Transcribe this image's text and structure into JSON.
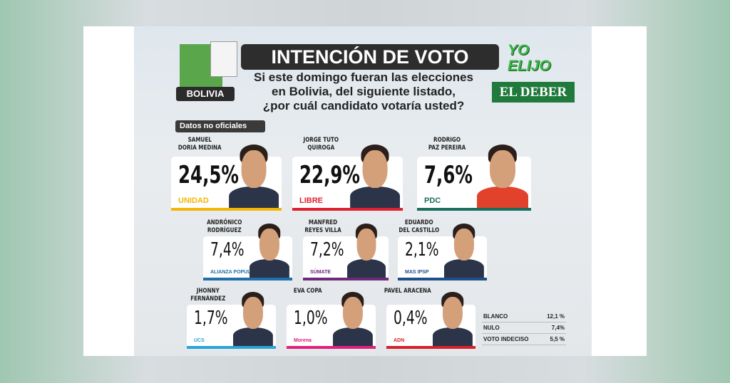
{
  "header": {
    "region": "BOLIVIA",
    "title": "INTENCIÓN DE VOTO",
    "question_lines": [
      "Si este domingo fueran las elecciones",
      "en Bolivia, del siguiente listado,",
      "¿por cuál candidato votaría usted?"
    ],
    "brand_top": [
      "YO",
      "ELIJO"
    ],
    "brand": "EL DEBER",
    "note": "Datos no oficiales"
  },
  "candidates": [
    {
      "name": [
        "SAMUEL",
        "DORIA MEDINA"
      ],
      "pct": "24,5%",
      "party": "UNIDAD",
      "color": "#f2b705"
    },
    {
      "name": [
        "JORGE TUTO",
        "QUIROGA"
      ],
      "pct": "22,9%",
      "party": "LIBRE",
      "color": "#e0202e"
    },
    {
      "name": [
        "RODRIGO",
        "PAZ PEREIRA"
      ],
      "pct": "7,6%",
      "party": "PDC",
      "color": "#1a6e5c"
    },
    {
      "name": [
        "ANDRÓNICO",
        "RODRÍGUEZ"
      ],
      "pct": "7,4%",
      "party": "ALIANZA POPULAR",
      "color": "#1f6fa8"
    },
    {
      "name": [
        "MANFRED",
        "REYES VILLA"
      ],
      "pct": "7,2%",
      "party": "SÚMATE",
      "color": "#6b2a7a"
    },
    {
      "name": [
        "EDUARDO",
        "DEL CASTILLO"
      ],
      "pct": "2,1%",
      "party": "MAS IPSP",
      "color": "#1f4f8a"
    },
    {
      "name": [
        "JHONNY",
        "FERNÁNDEZ"
      ],
      "pct": "1,7%",
      "party": "UCS",
      "color": "#2aa4d8"
    },
    {
      "name": [
        "EVA COPA",
        ""
      ],
      "pct": "1,0%",
      "party": "Morena",
      "color": "#e0207a"
    },
    {
      "name": [
        "PAVEL ARACENA",
        ""
      ],
      "pct": "0,4%",
      "party": "ADN",
      "color": "#d81f2a"
    }
  ],
  "others": [
    {
      "label": "BLANCO",
      "value": "12,1 %"
    },
    {
      "label": "NULO",
      "value": "7,4%"
    },
    {
      "label": "VOTO INDECISO",
      "value": "5,5 %"
    }
  ],
  "chart_data": {
    "type": "table",
    "categories": [
      "Samuel Doria Medina",
      "Jorge Tuto Quiroga",
      "Rodrigo Paz Pereira",
      "Andrónico Rodríguez",
      "Manfred Reyes Villa",
      "Eduardo del Castillo",
      "Jhonny Fernández",
      "Eva Copa",
      "Pavel Aracena",
      "Blanco",
      "Nulo",
      "Voto indeciso"
    ],
    "values": [
      24.5,
      22.9,
      7.6,
      7.4,
      7.2,
      2.1,
      1.7,
      1.0,
      0.4,
      12.1,
      7.4,
      5.5
    ],
    "title": "INTENCIÓN DE VOTO"
  }
}
